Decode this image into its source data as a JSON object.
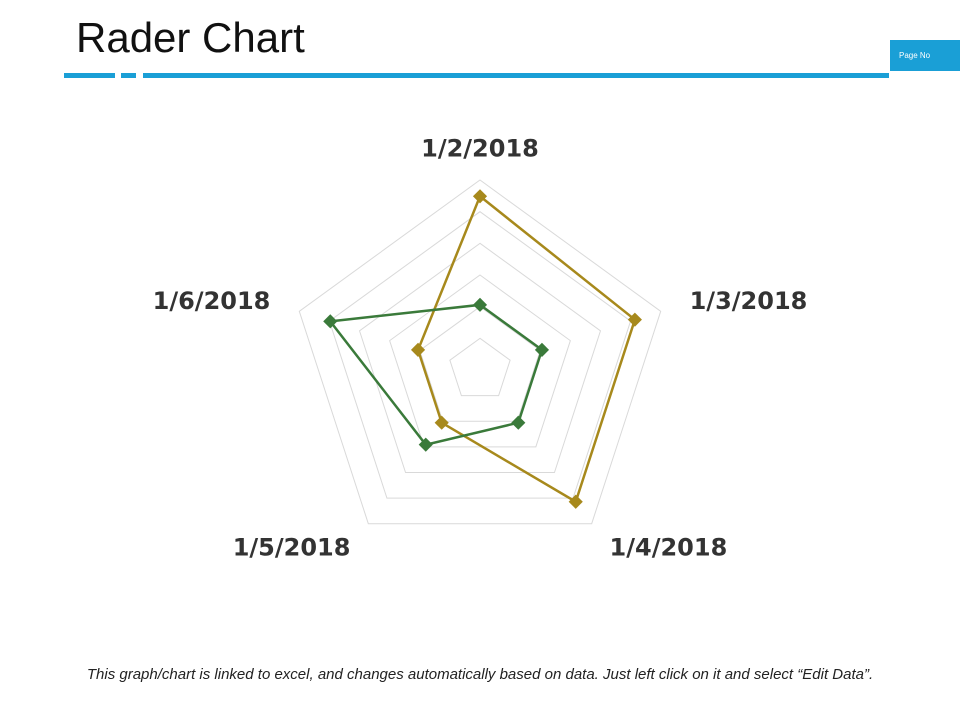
{
  "slide": {
    "title": "Rader Chart",
    "page_no_label": "Page No",
    "footnote": "This graph/chart is linked to excel, and changes automatically based on data. Just left click on it and select “Edit Data”."
  },
  "colors": {
    "accent": "#1a9fd6",
    "grid": "#d9d9d9",
    "series_gold": "#a7891c",
    "series_green": "#3a7a3a"
  },
  "chart_data": {
    "type": "radar",
    "title": "",
    "categories": [
      "1/2/2018",
      "1/3/2018",
      "1/4/2018",
      "1/5/2018",
      "1/6/2018"
    ],
    "rlim": [
      0,
      35
    ],
    "grid": true,
    "grid_levels": 6,
    "legend": "none",
    "series": [
      {
        "color": "#a7891c",
        "values": [
          32,
          30,
          30,
          12,
          12
        ]
      },
      {
        "color": "#3a7a3a",
        "values": [
          12,
          12,
          12,
          17,
          29
        ]
      }
    ]
  }
}
